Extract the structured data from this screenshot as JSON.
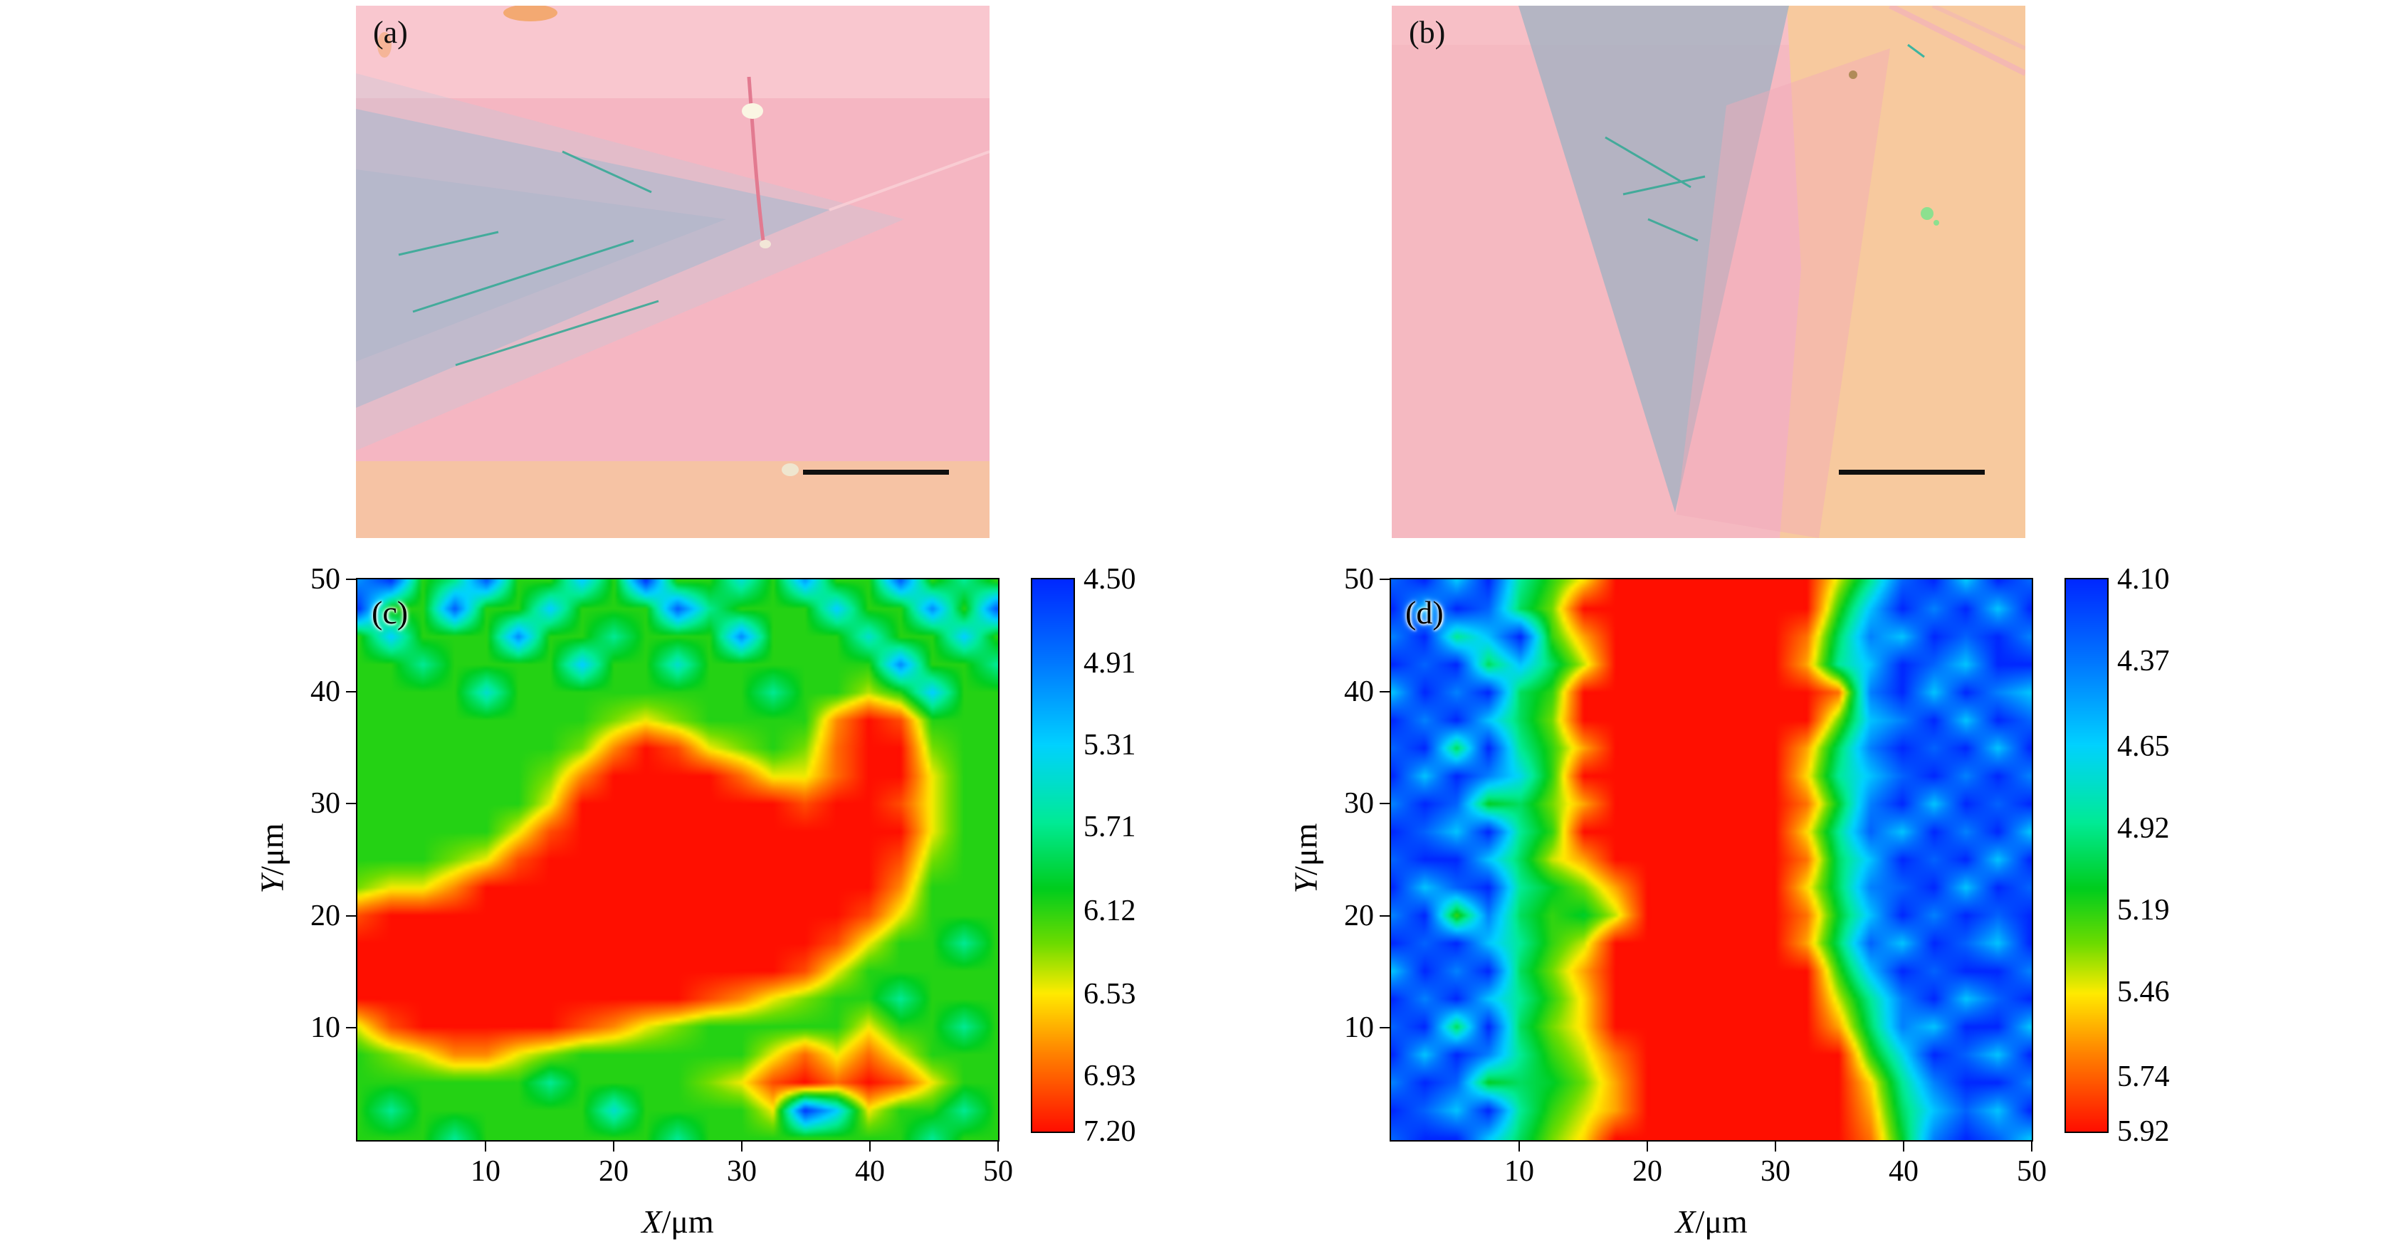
{
  "figure": {
    "panels": [
      {
        "id": "a",
        "label": "(a)",
        "type": "optical microscope image",
        "has_scale_bar": true
      },
      {
        "id": "b",
        "label": "(b)",
        "type": "optical microscope image",
        "has_scale_bar": true
      }
    ]
  },
  "colors": {
    "page_background": "#ffffff",
    "optical_pink": "#f5b6c2",
    "optical_peach": "#f7c99e",
    "flake_gray_a": "#a9b9cf",
    "flake_gray_b": "#9db2c2",
    "axis_color": "#000000",
    "cmap_low_blue": "#0028ff",
    "cmap_mid_green": "#00cd1e",
    "cmap_high_red": "#ff0f00"
  },
  "chart_data": [
    {
      "type": "heatmap",
      "panel_label": "(c)",
      "xlabel_var": "X",
      "xlabel_unit": "/μm",
      "ylabel_var": "Y",
      "ylabel_unit": "/μm",
      "x_range": [
        0,
        50
      ],
      "y_range": [
        0,
        50
      ],
      "x_ticks": [
        10,
        20,
        30,
        40,
        50
      ],
      "y_ticks": [
        10,
        20,
        30,
        40,
        50
      ],
      "colormap": "rainbow (blue=low, red=high)",
      "colorbar": {
        "min": 4.5,
        "max": 7.2,
        "tick_values": [
          4.5,
          4.91,
          5.31,
          5.71,
          6.12,
          6.53,
          6.93,
          7.2
        ],
        "tick_labels": [
          "4.50",
          "4.91",
          "5.31",
          "5.71",
          "6.12",
          "6.53",
          "6.93",
          "7.20"
        ]
      },
      "grid_layout": "values[row][col]; row 0 = Y=50 (top) to row 20 = Y=0; col 0 = X=0 to col 20 = X=50",
      "values": [
        [
          5.0,
          4.6,
          6.1,
          5.7,
          4.8,
          6.1,
          6.1,
          5.3,
          6.1,
          4.6,
          6.1,
          6.1,
          5.5,
          6.1,
          5.1,
          6.1,
          6.1,
          4.8,
          6.1,
          5.7,
          6.1
        ],
        [
          4.6,
          6.1,
          6.1,
          4.8,
          6.1,
          6.1,
          5.3,
          6.1,
          6.1,
          6.1,
          4.8,
          5.7,
          6.1,
          6.1,
          6.1,
          5.3,
          6.1,
          6.1,
          5.0,
          6.1,
          4.8
        ],
        [
          6.1,
          5.3,
          6.1,
          6.1,
          6.1,
          5.0,
          6.1,
          6.1,
          5.7,
          6.1,
          6.1,
          6.1,
          5.0,
          6.1,
          6.1,
          6.1,
          5.5,
          6.1,
          6.1,
          5.3,
          6.1
        ],
        [
          6.1,
          6.1,
          5.7,
          6.1,
          6.1,
          6.1,
          6.1,
          5.3,
          6.1,
          6.1,
          5.5,
          6.1,
          6.1,
          6.1,
          6.1,
          6.1,
          6.1,
          5.0,
          6.1,
          6.1,
          5.7
        ],
        [
          6.1,
          6.1,
          6.1,
          6.1,
          5.5,
          6.1,
          6.1,
          6.1,
          6.1,
          6.1,
          6.1,
          6.1,
          6.1,
          5.7,
          6.1,
          6.1,
          6.4,
          6.1,
          5.3,
          6.1,
          6.1
        ],
        [
          6.1,
          6.1,
          6.1,
          6.1,
          6.1,
          6.1,
          6.1,
          6.1,
          6.3,
          6.5,
          6.3,
          6.1,
          6.1,
          6.1,
          6.1,
          6.8,
          7.2,
          7.0,
          6.1,
          6.1,
          6.1
        ],
        [
          6.1,
          6.1,
          6.1,
          6.1,
          6.1,
          6.1,
          6.1,
          6.3,
          6.8,
          7.2,
          7.0,
          6.5,
          6.3,
          6.1,
          6.3,
          6.9,
          7.2,
          7.2,
          6.3,
          6.1,
          6.1
        ],
        [
          6.1,
          6.1,
          6.1,
          6.1,
          6.1,
          6.1,
          6.3,
          6.8,
          7.2,
          7.2,
          7.2,
          7.2,
          6.9,
          6.5,
          6.5,
          6.9,
          7.2,
          7.2,
          6.5,
          6.1,
          6.1
        ],
        [
          6.1,
          6.1,
          6.1,
          6.1,
          6.1,
          6.1,
          6.5,
          7.2,
          7.2,
          7.2,
          7.2,
          7.2,
          7.2,
          7.2,
          7.0,
          7.2,
          7.2,
          7.0,
          6.5,
          6.1,
          6.1
        ],
        [
          6.1,
          6.1,
          6.1,
          6.1,
          6.1,
          6.5,
          7.0,
          7.2,
          7.2,
          7.2,
          7.2,
          7.2,
          7.2,
          7.2,
          7.2,
          7.2,
          7.2,
          7.2,
          6.5,
          6.1,
          6.1
        ],
        [
          6.1,
          6.1,
          6.1,
          6.3,
          6.5,
          7.0,
          7.2,
          7.2,
          7.2,
          7.2,
          7.2,
          7.2,
          7.2,
          7.2,
          7.2,
          7.2,
          7.2,
          7.0,
          6.3,
          6.1,
          6.1
        ],
        [
          6.3,
          6.5,
          6.5,
          6.8,
          7.2,
          7.2,
          7.2,
          7.2,
          7.2,
          7.2,
          7.2,
          7.2,
          7.2,
          7.2,
          7.2,
          7.2,
          7.2,
          6.8,
          6.1,
          6.1,
          6.1
        ],
        [
          7.0,
          7.2,
          7.2,
          7.2,
          7.2,
          7.2,
          7.2,
          7.2,
          7.2,
          7.2,
          7.2,
          7.2,
          7.2,
          7.2,
          7.2,
          7.2,
          7.0,
          6.5,
          6.1,
          6.1,
          6.1
        ],
        [
          7.2,
          7.2,
          7.2,
          7.2,
          7.2,
          7.2,
          7.2,
          7.2,
          7.2,
          7.2,
          7.2,
          7.2,
          7.2,
          7.2,
          7.2,
          7.0,
          6.5,
          6.1,
          6.1,
          5.7,
          6.1
        ],
        [
          7.2,
          7.2,
          7.2,
          7.2,
          7.2,
          7.2,
          7.2,
          7.2,
          7.2,
          7.2,
          7.2,
          7.2,
          7.2,
          7.2,
          7.0,
          6.5,
          6.1,
          6.1,
          6.1,
          6.1,
          6.1
        ],
        [
          7.2,
          7.2,
          7.2,
          7.2,
          7.2,
          7.2,
          7.2,
          7.2,
          7.2,
          7.2,
          7.2,
          7.0,
          6.8,
          6.5,
          6.3,
          6.1,
          6.1,
          5.7,
          6.1,
          6.1,
          6.1
        ],
        [
          6.5,
          7.0,
          7.2,
          7.2,
          7.2,
          7.2,
          7.2,
          7.0,
          6.8,
          6.5,
          6.3,
          6.1,
          6.1,
          6.1,
          6.1,
          6.1,
          6.5,
          6.1,
          6.1,
          5.7,
          6.1
        ],
        [
          6.1,
          6.3,
          6.5,
          6.8,
          6.8,
          6.5,
          6.3,
          6.1,
          6.1,
          6.1,
          6.1,
          6.1,
          6.1,
          6.5,
          6.9,
          6.5,
          6.9,
          6.5,
          6.1,
          6.1,
          6.1
        ],
        [
          6.1,
          6.1,
          6.1,
          6.1,
          6.1,
          6.1,
          5.7,
          6.1,
          6.1,
          6.1,
          6.1,
          6.3,
          6.5,
          7.0,
          7.2,
          6.9,
          7.2,
          7.0,
          6.5,
          6.1,
          6.1
        ],
        [
          6.1,
          5.7,
          6.1,
          6.1,
          6.1,
          6.1,
          6.1,
          6.1,
          5.5,
          6.1,
          6.1,
          6.1,
          6.1,
          6.5,
          4.6,
          5.3,
          6.5,
          6.1,
          6.1,
          5.7,
          6.1
        ],
        [
          6.1,
          6.1,
          6.1,
          5.7,
          6.1,
          6.1,
          6.1,
          6.1,
          6.1,
          6.1,
          5.7,
          6.1,
          6.1,
          6.1,
          6.1,
          6.1,
          6.1,
          6.1,
          5.7,
          6.1,
          6.1
        ]
      ]
    },
    {
      "type": "heatmap",
      "panel_label": "(d)",
      "xlabel_var": "X",
      "xlabel_unit": "/μm",
      "ylabel_var": "Y",
      "ylabel_unit": "/μm",
      "x_range": [
        0,
        50
      ],
      "y_range": [
        0,
        50
      ],
      "x_ticks": [
        10,
        20,
        30,
        40,
        50
      ],
      "y_ticks": [
        10,
        20,
        30,
        40,
        50
      ],
      "colormap": "rainbow (blue=low, red=high)",
      "colorbar": {
        "min": 4.1,
        "max": 5.92,
        "tick_values": [
          4.1,
          4.37,
          4.65,
          4.92,
          5.19,
          5.46,
          5.74,
          5.92
        ],
        "tick_labels": [
          "4.10",
          "4.37",
          "4.65",
          "4.92",
          "5.19",
          "5.46",
          "5.74",
          "5.92"
        ]
      },
      "grid_layout": "values[row][col]; row 0 = Y=50 (top) to row 20 = Y=0; col 0 = X=0 to col 20 = X=50",
      "values": [
        [
          4.3,
          4.1,
          4.6,
          4.1,
          4.9,
          5.2,
          5.5,
          5.92,
          5.92,
          5.92,
          5.92,
          5.92,
          5.92,
          5.92,
          5.4,
          4.9,
          4.3,
          4.1,
          4.6,
          4.1,
          4.3
        ],
        [
          4.1,
          4.6,
          4.1,
          4.3,
          5.0,
          5.3,
          5.92,
          5.92,
          5.92,
          5.92,
          5.92,
          5.92,
          5.92,
          5.92,
          5.2,
          4.6,
          4.1,
          4.4,
          4.1,
          4.6,
          4.1
        ],
        [
          4.4,
          4.1,
          4.9,
          4.6,
          4.1,
          5.2,
          5.6,
          5.92,
          5.92,
          5.92,
          5.92,
          5.92,
          5.92,
          5.7,
          5.0,
          4.4,
          4.6,
          4.1,
          4.3,
          4.1,
          4.4
        ],
        [
          4.1,
          4.3,
          4.1,
          5.0,
          4.6,
          5.0,
          5.4,
          5.92,
          5.92,
          5.92,
          5.92,
          5.92,
          5.92,
          5.6,
          4.9,
          4.6,
          4.1,
          4.3,
          4.6,
          4.1,
          4.1
        ],
        [
          4.6,
          4.1,
          4.4,
          4.1,
          5.0,
          5.2,
          5.92,
          5.92,
          5.92,
          5.92,
          5.92,
          5.92,
          5.92,
          5.92,
          5.7,
          4.4,
          4.1,
          4.6,
          4.1,
          4.4,
          4.6
        ],
        [
          4.1,
          4.4,
          4.1,
          4.6,
          5.0,
          5.3,
          5.92,
          5.92,
          5.92,
          5.92,
          5.92,
          5.92,
          5.92,
          5.92,
          5.3,
          4.6,
          4.4,
          4.1,
          4.6,
          4.1,
          4.3
        ],
        [
          4.3,
          4.1,
          5.0,
          4.1,
          4.9,
          5.2,
          5.6,
          5.92,
          5.92,
          5.92,
          5.92,
          5.92,
          5.92,
          5.6,
          5.0,
          4.4,
          4.1,
          4.3,
          4.1,
          4.6,
          4.1
        ],
        [
          4.1,
          4.6,
          4.1,
          4.4,
          4.7,
          5.2,
          5.92,
          5.92,
          5.92,
          5.92,
          5.92,
          5.92,
          5.92,
          5.5,
          4.9,
          4.6,
          4.3,
          4.1,
          4.4,
          4.1,
          4.4
        ],
        [
          4.4,
          4.1,
          4.3,
          5.1,
          5.0,
          5.3,
          5.6,
          5.92,
          5.92,
          5.92,
          5.92,
          5.92,
          5.92,
          5.7,
          5.1,
          4.4,
          4.1,
          4.6,
          4.1,
          4.3,
          4.1
        ],
        [
          4.1,
          4.3,
          4.6,
          4.1,
          4.9,
          5.2,
          5.92,
          5.92,
          5.92,
          5.92,
          5.92,
          5.92,
          5.92,
          5.5,
          4.9,
          4.3,
          4.6,
          4.1,
          4.4,
          4.1,
          4.6
        ],
        [
          4.3,
          4.1,
          4.1,
          4.6,
          5.0,
          5.4,
          5.6,
          5.92,
          5.92,
          5.92,
          5.92,
          5.92,
          5.92,
          5.7,
          5.0,
          4.6,
          4.1,
          4.3,
          4.1,
          4.6,
          4.1
        ],
        [
          4.1,
          4.6,
          4.3,
          4.1,
          4.9,
          5.1,
          5.3,
          5.6,
          5.92,
          5.92,
          5.92,
          5.92,
          5.92,
          5.5,
          5.0,
          4.4,
          4.3,
          4.1,
          4.6,
          4.1,
          4.3
        ],
        [
          4.4,
          4.1,
          5.2,
          4.4,
          5.0,
          5.2,
          5.1,
          5.4,
          5.92,
          5.92,
          5.92,
          5.92,
          5.92,
          5.7,
          5.1,
          4.6,
          4.1,
          4.4,
          4.1,
          4.3,
          4.1
        ],
        [
          4.1,
          4.3,
          4.1,
          4.6,
          4.9,
          5.2,
          5.4,
          5.92,
          5.92,
          5.92,
          5.92,
          5.92,
          5.92,
          5.6,
          5.0,
          4.3,
          4.6,
          4.1,
          4.3,
          4.6,
          4.1
        ],
        [
          4.6,
          4.1,
          4.4,
          4.1,
          5.0,
          5.3,
          5.6,
          5.92,
          5.92,
          5.92,
          5.92,
          5.92,
          5.92,
          5.92,
          5.2,
          4.6,
          4.1,
          4.3,
          4.1,
          4.1,
          4.4
        ],
        [
          4.1,
          4.4,
          4.1,
          4.6,
          4.9,
          5.2,
          5.5,
          5.92,
          5.92,
          5.92,
          5.92,
          5.92,
          5.92,
          5.92,
          5.4,
          4.9,
          4.4,
          4.1,
          4.6,
          4.3,
          4.1
        ],
        [
          4.3,
          4.1,
          5.0,
          4.1,
          5.0,
          5.3,
          5.5,
          5.92,
          5.92,
          5.92,
          5.92,
          5.92,
          5.92,
          5.92,
          5.6,
          5.0,
          4.4,
          4.6,
          4.1,
          4.1,
          4.6
        ],
        [
          4.1,
          4.6,
          4.1,
          4.4,
          4.9,
          5.2,
          5.4,
          5.7,
          5.92,
          5.92,
          5.92,
          5.92,
          5.92,
          5.92,
          5.92,
          5.2,
          4.7,
          4.1,
          4.3,
          4.6,
          4.1
        ],
        [
          4.4,
          4.1,
          4.3,
          5.1,
          5.0,
          5.1,
          5.3,
          5.6,
          5.92,
          5.92,
          5.92,
          5.92,
          5.92,
          5.92,
          5.92,
          5.5,
          4.9,
          4.4,
          4.1,
          4.1,
          4.4
        ],
        [
          4.1,
          4.3,
          4.6,
          4.1,
          4.9,
          5.2,
          5.4,
          5.6,
          5.92,
          5.92,
          5.92,
          5.92,
          5.92,
          5.92,
          5.92,
          5.6,
          5.0,
          4.6,
          4.3,
          4.6,
          4.1
        ],
        [
          4.3,
          4.1,
          4.1,
          4.6,
          5.0,
          5.3,
          5.5,
          5.92,
          5.92,
          5.92,
          5.92,
          5.92,
          5.92,
          5.92,
          5.92,
          5.7,
          5.1,
          4.4,
          4.1,
          4.3,
          4.6
        ]
      ]
    }
  ]
}
